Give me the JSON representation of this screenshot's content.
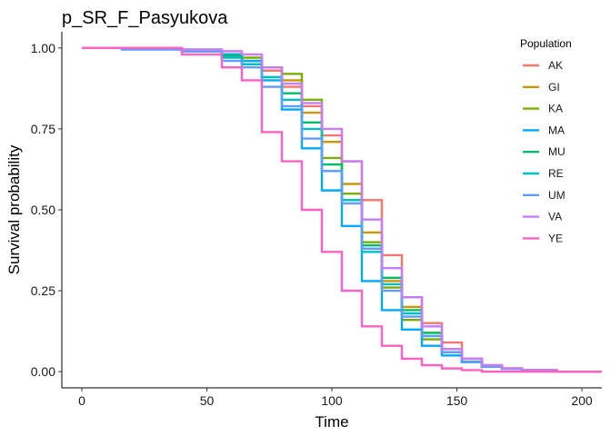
{
  "chart_data": {
    "type": "line",
    "step": true,
    "title": "p_SR_F_Pasyukova",
    "xlabel": "Time",
    "ylabel": "Survival probability",
    "xlim": [
      -8,
      208
    ],
    "ylim": [
      -0.05,
      1.05
    ],
    "x_ticks": [
      0,
      50,
      100,
      150,
      200
    ],
    "x_tick_labels": [
      "0",
      "50",
      "100",
      "150",
      "200"
    ],
    "y_ticks": [
      0.0,
      0.25,
      0.5,
      0.75,
      1.0
    ],
    "y_tick_labels": [
      "0.00",
      "0.25",
      "0.50",
      "0.75",
      "1.00"
    ],
    "grid": false,
    "legend": {
      "title": "Population",
      "position": "right"
    },
    "series": [
      {
        "name": "AK",
        "color": "#F8766D",
        "points": [
          [
            0,
            1.0
          ],
          [
            40,
            0.99
          ],
          [
            56,
            0.98
          ],
          [
            64,
            0.96
          ],
          [
            72,
            0.93
          ],
          [
            80,
            0.88
          ],
          [
            88,
            0.82
          ],
          [
            96,
            0.73
          ],
          [
            104,
            0.65
          ],
          [
            112,
            0.53
          ],
          [
            120,
            0.36
          ],
          [
            128,
            0.23
          ],
          [
            136,
            0.15
          ],
          [
            144,
            0.09
          ],
          [
            152,
            0.04
          ],
          [
            160,
            0.02
          ],
          [
            168,
            0.01
          ],
          [
            176,
            0.005
          ],
          [
            190,
            0.0
          ],
          [
            208,
            0.0
          ]
        ]
      },
      {
        "name": "GI",
        "color": "#CD9600",
        "points": [
          [
            0,
            1.0
          ],
          [
            40,
            0.995
          ],
          [
            56,
            0.98
          ],
          [
            64,
            0.96
          ],
          [
            72,
            0.94
          ],
          [
            80,
            0.9
          ],
          [
            88,
            0.8
          ],
          [
            96,
            0.71
          ],
          [
            104,
            0.58
          ],
          [
            112,
            0.43
          ],
          [
            120,
            0.28
          ],
          [
            128,
            0.2
          ],
          [
            136,
            0.12
          ],
          [
            144,
            0.07
          ],
          [
            152,
            0.04
          ],
          [
            160,
            0.02
          ],
          [
            168,
            0.01
          ],
          [
            176,
            0.005
          ],
          [
            190,
            0.0
          ],
          [
            208,
            0.0
          ]
        ]
      },
      {
        "name": "KA",
        "color": "#7CAE00",
        "points": [
          [
            0,
            1.0
          ],
          [
            40,
            0.99
          ],
          [
            56,
            0.98
          ],
          [
            64,
            0.97
          ],
          [
            72,
            0.94
          ],
          [
            80,
            0.92
          ],
          [
            88,
            0.84
          ],
          [
            96,
            0.66
          ],
          [
            104,
            0.55
          ],
          [
            112,
            0.4
          ],
          [
            120,
            0.26
          ],
          [
            128,
            0.16
          ],
          [
            136,
            0.1
          ],
          [
            144,
            0.06
          ],
          [
            152,
            0.03
          ],
          [
            160,
            0.015
          ],
          [
            168,
            0.01
          ],
          [
            176,
            0.005
          ],
          [
            190,
            0.0
          ],
          [
            208,
            0.0
          ]
        ]
      },
      {
        "name": "MA",
        "color": "#00A9FF",
        "points": [
          [
            0,
            1.0
          ],
          [
            40,
            0.995
          ],
          [
            56,
            0.98
          ],
          [
            64,
            0.96
          ],
          [
            72,
            0.9
          ],
          [
            80,
            0.81
          ],
          [
            88,
            0.69
          ],
          [
            96,
            0.56
          ],
          [
            104,
            0.45
          ],
          [
            112,
            0.28
          ],
          [
            120,
            0.19
          ],
          [
            128,
            0.13
          ],
          [
            136,
            0.08
          ],
          [
            144,
            0.05
          ],
          [
            152,
            0.03
          ],
          [
            160,
            0.015
          ],
          [
            168,
            0.008
          ],
          [
            176,
            0.004
          ],
          [
            190,
            0.0
          ],
          [
            208,
            0.0
          ]
        ]
      },
      {
        "name": "MU",
        "color": "#00BE67",
        "points": [
          [
            0,
            1.0
          ],
          [
            40,
            0.99
          ],
          [
            56,
            0.975
          ],
          [
            64,
            0.95
          ],
          [
            72,
            0.91
          ],
          [
            80,
            0.86
          ],
          [
            88,
            0.77
          ],
          [
            96,
            0.64
          ],
          [
            104,
            0.53
          ],
          [
            112,
            0.39
          ],
          [
            120,
            0.29
          ],
          [
            128,
            0.19
          ],
          [
            136,
            0.12
          ],
          [
            144,
            0.06
          ],
          [
            152,
            0.03
          ],
          [
            160,
            0.015
          ],
          [
            168,
            0.008
          ],
          [
            176,
            0.004
          ],
          [
            190,
            0.0
          ],
          [
            208,
            0.0
          ]
        ]
      },
      {
        "name": "RE",
        "color": "#00BFC4",
        "points": [
          [
            0,
            1.0
          ],
          [
            40,
            0.99
          ],
          [
            56,
            0.97
          ],
          [
            64,
            0.95
          ],
          [
            72,
            0.91
          ],
          [
            80,
            0.84
          ],
          [
            88,
            0.75
          ],
          [
            96,
            0.62
          ],
          [
            104,
            0.53
          ],
          [
            112,
            0.37
          ],
          [
            120,
            0.27
          ],
          [
            128,
            0.18
          ],
          [
            136,
            0.11
          ],
          [
            144,
            0.06
          ],
          [
            152,
            0.03
          ],
          [
            160,
            0.015
          ],
          [
            168,
            0.008
          ],
          [
            176,
            0.004
          ],
          [
            190,
            0.0
          ],
          [
            208,
            0.0
          ]
        ]
      },
      {
        "name": "UM",
        "color": "#619CFF",
        "points": [
          [
            0,
            1.0
          ],
          [
            16,
            0.995
          ],
          [
            40,
            0.99
          ],
          [
            56,
            0.96
          ],
          [
            64,
            0.94
          ],
          [
            72,
            0.88
          ],
          [
            80,
            0.82
          ],
          [
            88,
            0.72
          ],
          [
            96,
            0.62
          ],
          [
            104,
            0.52
          ],
          [
            112,
            0.38
          ],
          [
            120,
            0.25
          ],
          [
            128,
            0.17
          ],
          [
            136,
            0.11
          ],
          [
            144,
            0.06
          ],
          [
            152,
            0.03
          ],
          [
            160,
            0.015
          ],
          [
            168,
            0.008
          ],
          [
            176,
            0.004
          ],
          [
            190,
            0.0
          ],
          [
            208,
            0.0
          ]
        ]
      },
      {
        "name": "VA",
        "color": "#C77CFF",
        "points": [
          [
            0,
            1.0
          ],
          [
            40,
            0.995
          ],
          [
            56,
            0.99
          ],
          [
            64,
            0.98
          ],
          [
            72,
            0.94
          ],
          [
            80,
            0.89
          ],
          [
            88,
            0.83
          ],
          [
            96,
            0.75
          ],
          [
            104,
            0.65
          ],
          [
            112,
            0.47
          ],
          [
            120,
            0.32
          ],
          [
            128,
            0.23
          ],
          [
            136,
            0.14
          ],
          [
            144,
            0.07
          ],
          [
            152,
            0.04
          ],
          [
            160,
            0.02
          ],
          [
            168,
            0.01
          ],
          [
            176,
            0.005
          ],
          [
            190,
            0.0
          ],
          [
            208,
            0.0
          ]
        ]
      },
      {
        "name": "YE",
        "color": "#FF61C3",
        "points": [
          [
            0,
            1.0
          ],
          [
            40,
            0.98
          ],
          [
            56,
            0.94
          ],
          [
            64,
            0.9
          ],
          [
            72,
            0.74
          ],
          [
            80,
            0.65
          ],
          [
            88,
            0.5
          ],
          [
            96,
            0.37
          ],
          [
            104,
            0.25
          ],
          [
            112,
            0.14
          ],
          [
            120,
            0.08
          ],
          [
            128,
            0.04
          ],
          [
            136,
            0.02
          ],
          [
            144,
            0.01
          ],
          [
            152,
            0.005
          ],
          [
            160,
            0.0
          ],
          [
            208,
            0.0
          ]
        ]
      }
    ]
  }
}
